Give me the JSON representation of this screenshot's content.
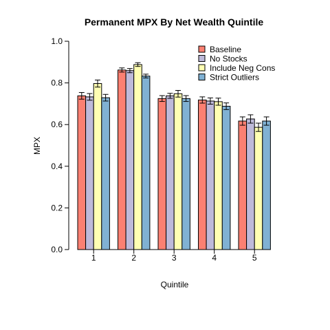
{
  "chart_data": {
    "type": "bar",
    "title": "Permanent MPX By Net Wealth Quintile",
    "xlabel": "Quintile",
    "ylabel": "MPX",
    "categories": [
      "1",
      "2",
      "3",
      "4",
      "5"
    ],
    "ylim": [
      0,
      1
    ],
    "yticks": [
      "0.0",
      "0.2",
      "0.4",
      "0.6",
      "0.8",
      "1.0"
    ],
    "grid": false,
    "legend_position": "top-right",
    "series": [
      {
        "name": "Baseline",
        "color": "#FB8072",
        "values": [
          0.738,
          0.862,
          0.725,
          0.718,
          0.617
        ],
        "errors": [
          0.016,
          0.01,
          0.014,
          0.015,
          0.02
        ]
      },
      {
        "name": "No Stocks",
        "color": "#BEBADA",
        "values": [
          0.733,
          0.859,
          0.738,
          0.713,
          0.627
        ],
        "errors": [
          0.016,
          0.01,
          0.012,
          0.015,
          0.02
        ]
      },
      {
        "name": "Include Neg Cons",
        "color": "#FFFFB3",
        "values": [
          0.797,
          0.888,
          0.748,
          0.71,
          0.587
        ],
        "errors": [
          0.017,
          0.009,
          0.016,
          0.017,
          0.02
        ]
      },
      {
        "name": "Strict Outliers",
        "color": "#80B1D3",
        "values": [
          0.729,
          0.833,
          0.725,
          0.688,
          0.617
        ],
        "errors": [
          0.016,
          0.009,
          0.014,
          0.016,
          0.02
        ]
      }
    ]
  }
}
